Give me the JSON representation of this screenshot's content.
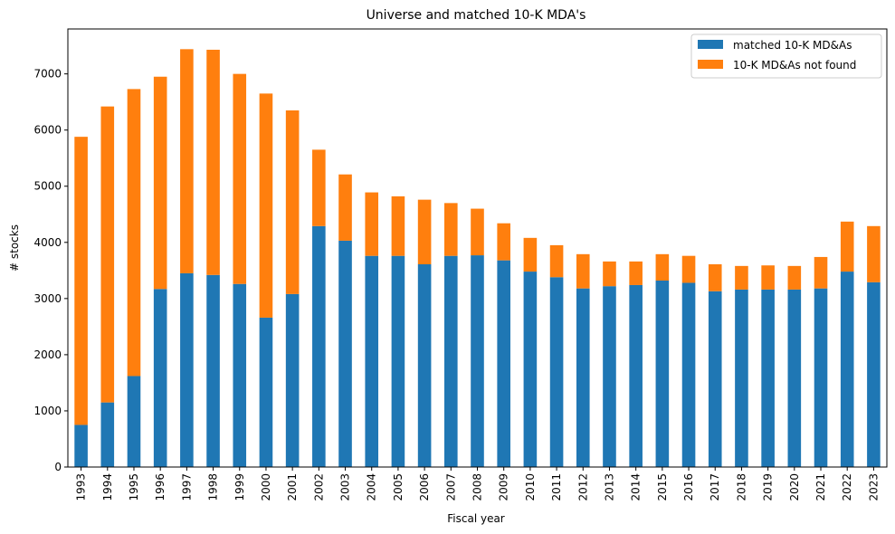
{
  "chart_data": {
    "type": "bar",
    "stacked": true,
    "title": "Universe and matched 10-K MDA's",
    "xlabel": "Fiscal year",
    "ylabel": "# stocks",
    "ylim": [
      0,
      7800
    ],
    "yticks": [
      0,
      1000,
      2000,
      3000,
      4000,
      5000,
      6000,
      7000
    ],
    "grid": false,
    "legend_position": "top-right",
    "categories": [
      "1993",
      "1994",
      "1995",
      "1996",
      "1997",
      "1998",
      "1999",
      "2000",
      "2001",
      "2002",
      "2003",
      "2004",
      "2005",
      "2006",
      "2007",
      "2008",
      "2009",
      "2010",
      "2011",
      "2012",
      "2013",
      "2014",
      "2015",
      "2016",
      "2017",
      "2018",
      "2019",
      "2020",
      "2021",
      "2022",
      "2023"
    ],
    "series": [
      {
        "name": "matched 10-K MD&As",
        "color": "#1f77b4",
        "values": [
          750,
          1150,
          1620,
          3170,
          3450,
          3420,
          3260,
          2660,
          3080,
          4290,
          4030,
          3760,
          3760,
          3610,
          3760,
          3770,
          3680,
          3480,
          3380,
          3180,
          3220,
          3240,
          3320,
          3280,
          3130,
          3160,
          3160,
          3160,
          3180,
          3480,
          3290
        ]
      },
      {
        "name": "10-K MD&As not found",
        "color": "#ff7f0e",
        "values": [
          5130,
          5270,
          5110,
          3780,
          3990,
          4010,
          3740,
          3990,
          3270,
          1360,
          1180,
          1130,
          1060,
          1150,
          940,
          830,
          660,
          600,
          570,
          610,
          440,
          420,
          470,
          480,
          480,
          420,
          430,
          420,
          560,
          890,
          1000
        ]
      }
    ]
  }
}
